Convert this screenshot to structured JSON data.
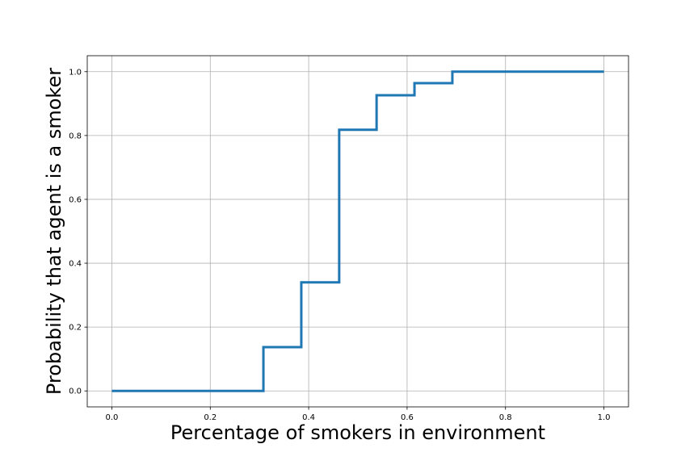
{
  "chart_data": {
    "type": "line",
    "step": "post",
    "title": "",
    "xlabel": "Percentage of smokers in environment",
    "ylabel": "Probability that agent is a smoker",
    "xlim": [
      -0.05,
      1.05
    ],
    "ylim": [
      -0.05,
      1.05
    ],
    "xticks": [
      0.0,
      0.2,
      0.4,
      0.6,
      0.8,
      1.0
    ],
    "xtick_labels": [
      "0.0",
      "0.2",
      "0.4",
      "0.6",
      "0.8",
      "1.0"
    ],
    "yticks": [
      0.0,
      0.2,
      0.4,
      0.6,
      0.8,
      1.0
    ],
    "ytick_labels": [
      "0.0",
      "0.2",
      "0.4",
      "0.6",
      "0.8",
      "1.0"
    ],
    "grid": true,
    "series": [
      {
        "color": "#1f77b4",
        "x": [
          0.0,
          0.308,
          0.385,
          0.462,
          0.538,
          0.615,
          0.692,
          1.0
        ],
        "y": [
          0.0,
          0.137,
          0.34,
          0.818,
          0.926,
          0.964,
          1.0,
          1.0
        ]
      }
    ]
  }
}
